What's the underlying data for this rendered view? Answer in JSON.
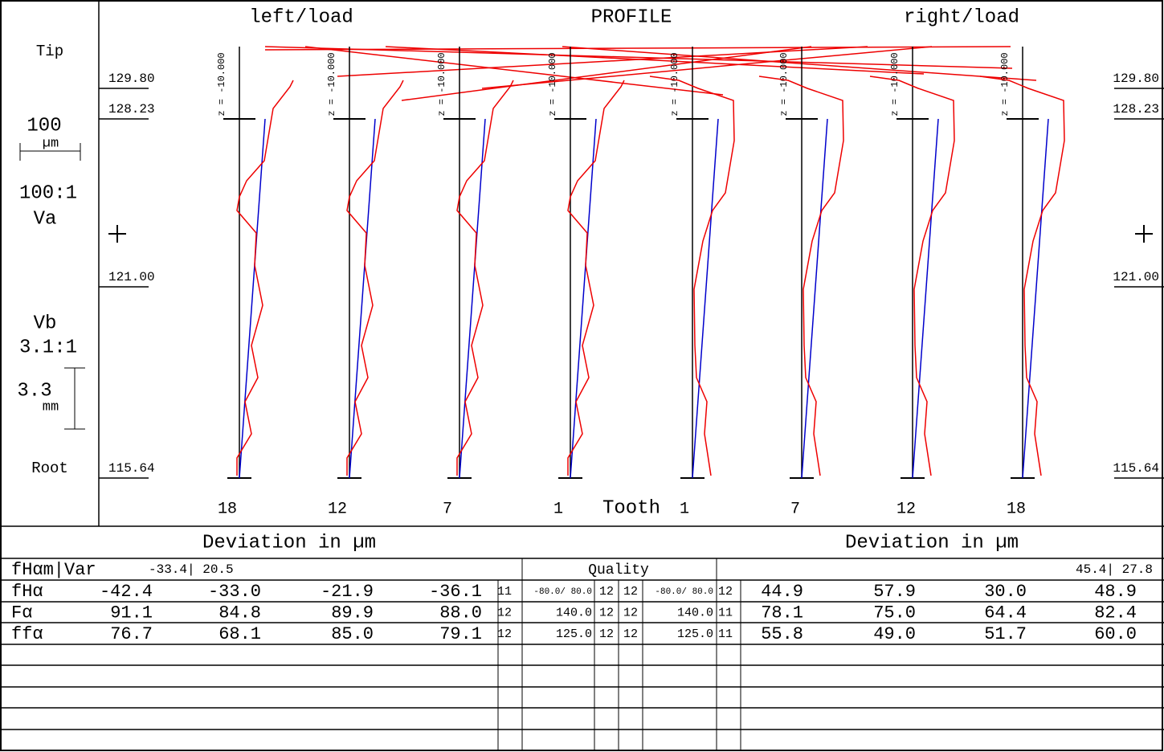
{
  "header": {
    "left_title": "left/load",
    "center_title": "PROFILE",
    "right_title": "right/load"
  },
  "side": {
    "tip": "Tip",
    "root": "Root",
    "va_scale": "100",
    "va_unit": "µm",
    "va_ratio": "100:1",
    "va_label": "Va",
    "vb_label": "Vb",
    "vb_ratio": "3.1:1",
    "vb_scale": "3.3",
    "vb_unit": "mm"
  },
  "diameters": {
    "left": [
      "129.80",
      "128.23",
      "121.00",
      "115.64"
    ],
    "right": [
      "129.80",
      "128.23",
      "121.00",
      "115.64"
    ]
  },
  "traces": {
    "z_labels": [
      "z = -10.000",
      "z = -10.000",
      "z = -10.000",
      "z = -10.000",
      "z = -10.000",
      "z = -10.000",
      "z = -10.000",
      "z = -10.000"
    ],
    "teeth": [
      "18",
      "12",
      "7",
      "1",
      "1",
      "7",
      "12",
      "18"
    ],
    "tooth_label": "Tooth"
  },
  "table": {
    "left_heading": "Deviation in µm",
    "right_heading": "Deviation in µm",
    "quality": "Quality",
    "var_label": "fHαm|Var",
    "var_left": "-33.4| 20.5",
    "var_right": "45.4| 27.8",
    "rows": [
      {
        "label": "fHα",
        "left": [
          "-42.4",
          "-33.0",
          "-21.9",
          "-36.1"
        ],
        "q_left": "11",
        "tol_left": "-80.0/ 80.0",
        "q1": "12",
        "q2": "12",
        "tol_right": "-80.0/ 80.0",
        "q_right": "12",
        "right": [
          "44.9",
          "57.9",
          "30.0",
          "48.9"
        ]
      },
      {
        "label": "Fα",
        "left": [
          "91.1",
          "84.8",
          "89.9",
          "88.0"
        ],
        "q_left": "12",
        "tol_left": "140.0",
        "q1": "12",
        "q2": "12",
        "tol_right": "140.0",
        "q_right": "11",
        "right": [
          "78.1",
          "75.0",
          "64.4",
          "82.4"
        ]
      },
      {
        "label": "ffα",
        "left": [
          "76.7",
          "68.1",
          "85.0",
          "79.1"
        ],
        "q_left": "12",
        "tol_left": "125.0",
        "q1": "12",
        "q2": "12",
        "tol_right": "125.0",
        "q_right": "11",
        "right": [
          "55.8",
          "49.0",
          "51.7",
          "60.0"
        ]
      }
    ]
  }
}
